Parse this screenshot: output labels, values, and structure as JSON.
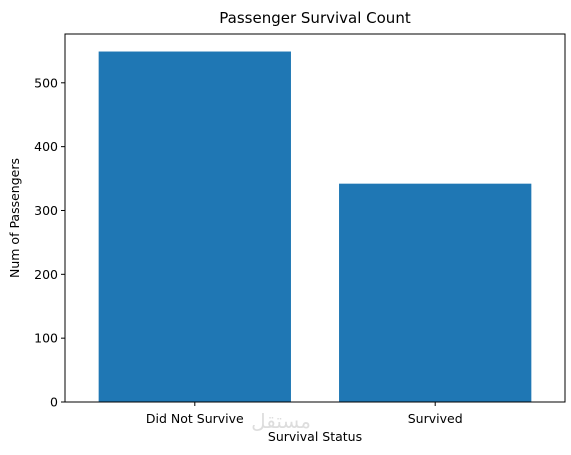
{
  "chart_data": {
    "type": "bar",
    "title": "Passenger Survival Count",
    "xlabel": "Survival Status",
    "ylabel": "Num of Passengers",
    "categories": [
      "Did Not Survive",
      "Survived"
    ],
    "values": [
      549,
      342
    ],
    "ylim": [
      0,
      576.45
    ],
    "yticks": [
      0,
      100,
      200,
      300,
      400,
      500
    ],
    "bar_color": "#1f77b4",
    "grid": false,
    "legend": "none"
  },
  "watermark": {
    "text": "مستقل"
  }
}
